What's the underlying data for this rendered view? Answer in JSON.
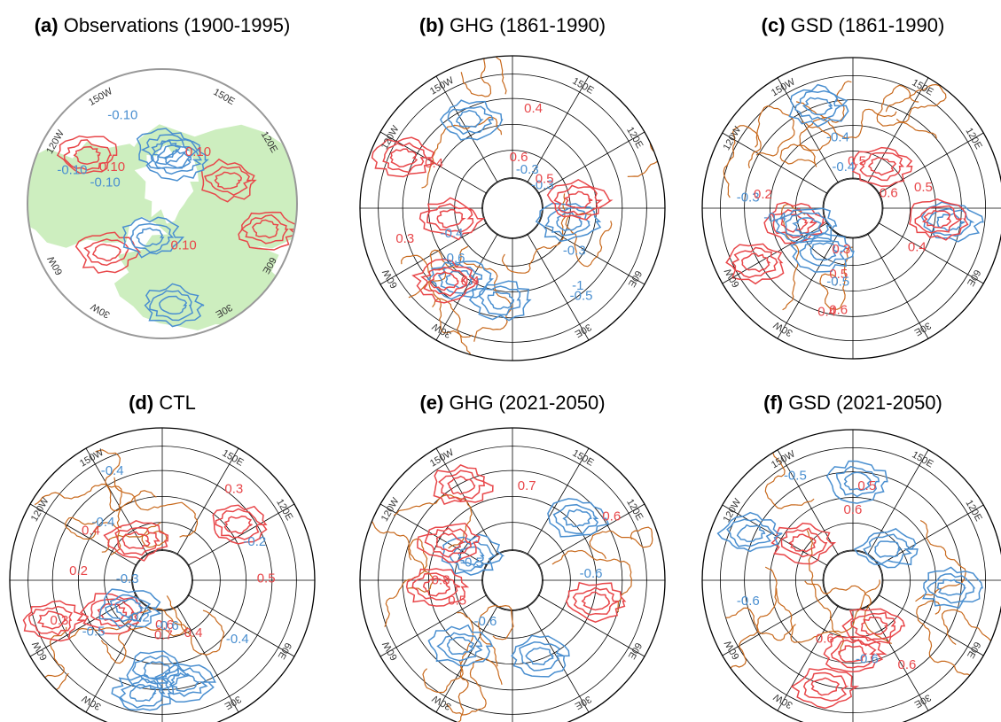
{
  "lon_labels": [
    "150W",
    "150E",
    "120W",
    "120E",
    "60W",
    "60E",
    "30W",
    "30E"
  ],
  "panels": [
    {
      "letter": "(a)",
      "title": "Observations (1900-1995)",
      "contour_labels": [
        "-0.10",
        "0.10",
        "-0.10",
        "0.10",
        "-0.10",
        "0.10"
      ]
    },
    {
      "letter": "(b)",
      "title": "GHG (1861-1990)",
      "contour_labels": [
        "-0.3",
        "0.4",
        "0.3",
        "-0.3",
        "-1",
        "0.5",
        "0.4",
        "0.4",
        "0.6",
        "-0.4",
        "-0.5",
        "-0.6",
        "-0.3"
      ]
    },
    {
      "letter": "(c)",
      "title": "GSD (1861-1990)",
      "contour_labels": [
        "0.5",
        "-0.3",
        "0.2",
        "-0.4",
        "0.4",
        "0.3",
        "0.5",
        "0.4",
        "0.5",
        "0.6",
        "0.6",
        "-0.4",
        "-0.5",
        "-0.4"
      ]
    },
    {
      "letter": "(d)",
      "title": "CTL",
      "contour_labels": [
        "-0.4",
        "-0.3",
        "-0.2",
        "-0.2",
        "0.2",
        "0.3",
        "0.4",
        "-0.4",
        "0.3",
        "0.5",
        "0.4",
        "0.7",
        "0.6",
        "-0.4",
        "-0.5",
        "-0.6"
      ]
    },
    {
      "letter": "(e)",
      "title": "GHG (2021-2050)",
      "contour_labels": [
        "0.5",
        "-0.5",
        "0.7",
        "0.6",
        "0.8",
        "-0.6",
        "-0.6"
      ]
    },
    {
      "letter": "(f)",
      "title": "GSD (2021-2050)",
      "contour_labels": [
        "-0.5",
        "0.5",
        "0.6",
        "0.6",
        "-0.6",
        "0.6",
        "-0.6"
      ]
    }
  ]
}
